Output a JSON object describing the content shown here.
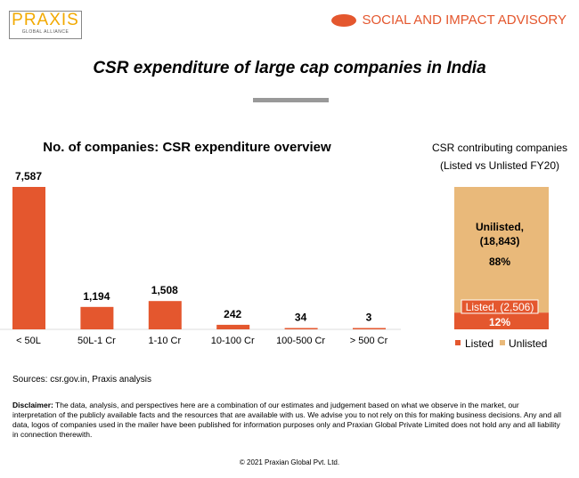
{
  "header": {
    "logo_main": "PRAXIS",
    "logo_sub": "GLOBAL ALLIANCE",
    "brand": "SOCIAL AND IMPACT ADVISORY"
  },
  "title": "CSR expenditure of large cap companies in India",
  "colors": {
    "listed": "#e4572e",
    "unlisted": "#e9b97a"
  },
  "chart_data": [
    {
      "type": "bar",
      "title": "No. of companies: CSR expenditure overview",
      "categories": [
        "< 50L",
        "50L-1 Cr",
        "1-10 Cr",
        "10-100 Cr",
        "100-500 Cr",
        "> 500 Cr"
      ],
      "values": [
        7587,
        1194,
        1508,
        242,
        34,
        3
      ],
      "data_labels": [
        "7,587",
        "1,194",
        "1,508",
        "242",
        "34",
        "3"
      ],
      "ylim": [
        0,
        7587
      ],
      "grid": false
    },
    {
      "type": "bar",
      "stacked": true,
      "title": "CSR contributing companies",
      "subtitle": "(Listed vs Unlisted FY20)",
      "categories": [
        ""
      ],
      "series": [
        {
          "name": "Listed",
          "values": [
            2506
          ],
          "percent": 12,
          "label": "Listed, (2,506)",
          "pct_label": "12%"
        },
        {
          "name": "Unlisted",
          "values": [
            18843
          ],
          "percent": 88,
          "label": "Unilisted,",
          "count_label": "(18,843)",
          "pct_label": "88%"
        }
      ],
      "legend": "bottom"
    }
  ],
  "footer": {
    "sources": "Sources: csr.gov.in, Praxis analysis",
    "disclaimer_label": "Disclaimer:",
    "disclaimer": " The data, analysis, and perspectives here are a combination of our estimates and judgement based on what we observe in the market, our interpretation of the publicly available facts and the resources that are available with us. We advise you to not rely on this for making business decisions. Any and all data, logos of companies used in the mailer have been published for information purposes only and Praxian Global Private Limited does not hold any and all liability in connection therewith.",
    "copyright": "© 2021 Praxian Global Pvt. Ltd."
  }
}
